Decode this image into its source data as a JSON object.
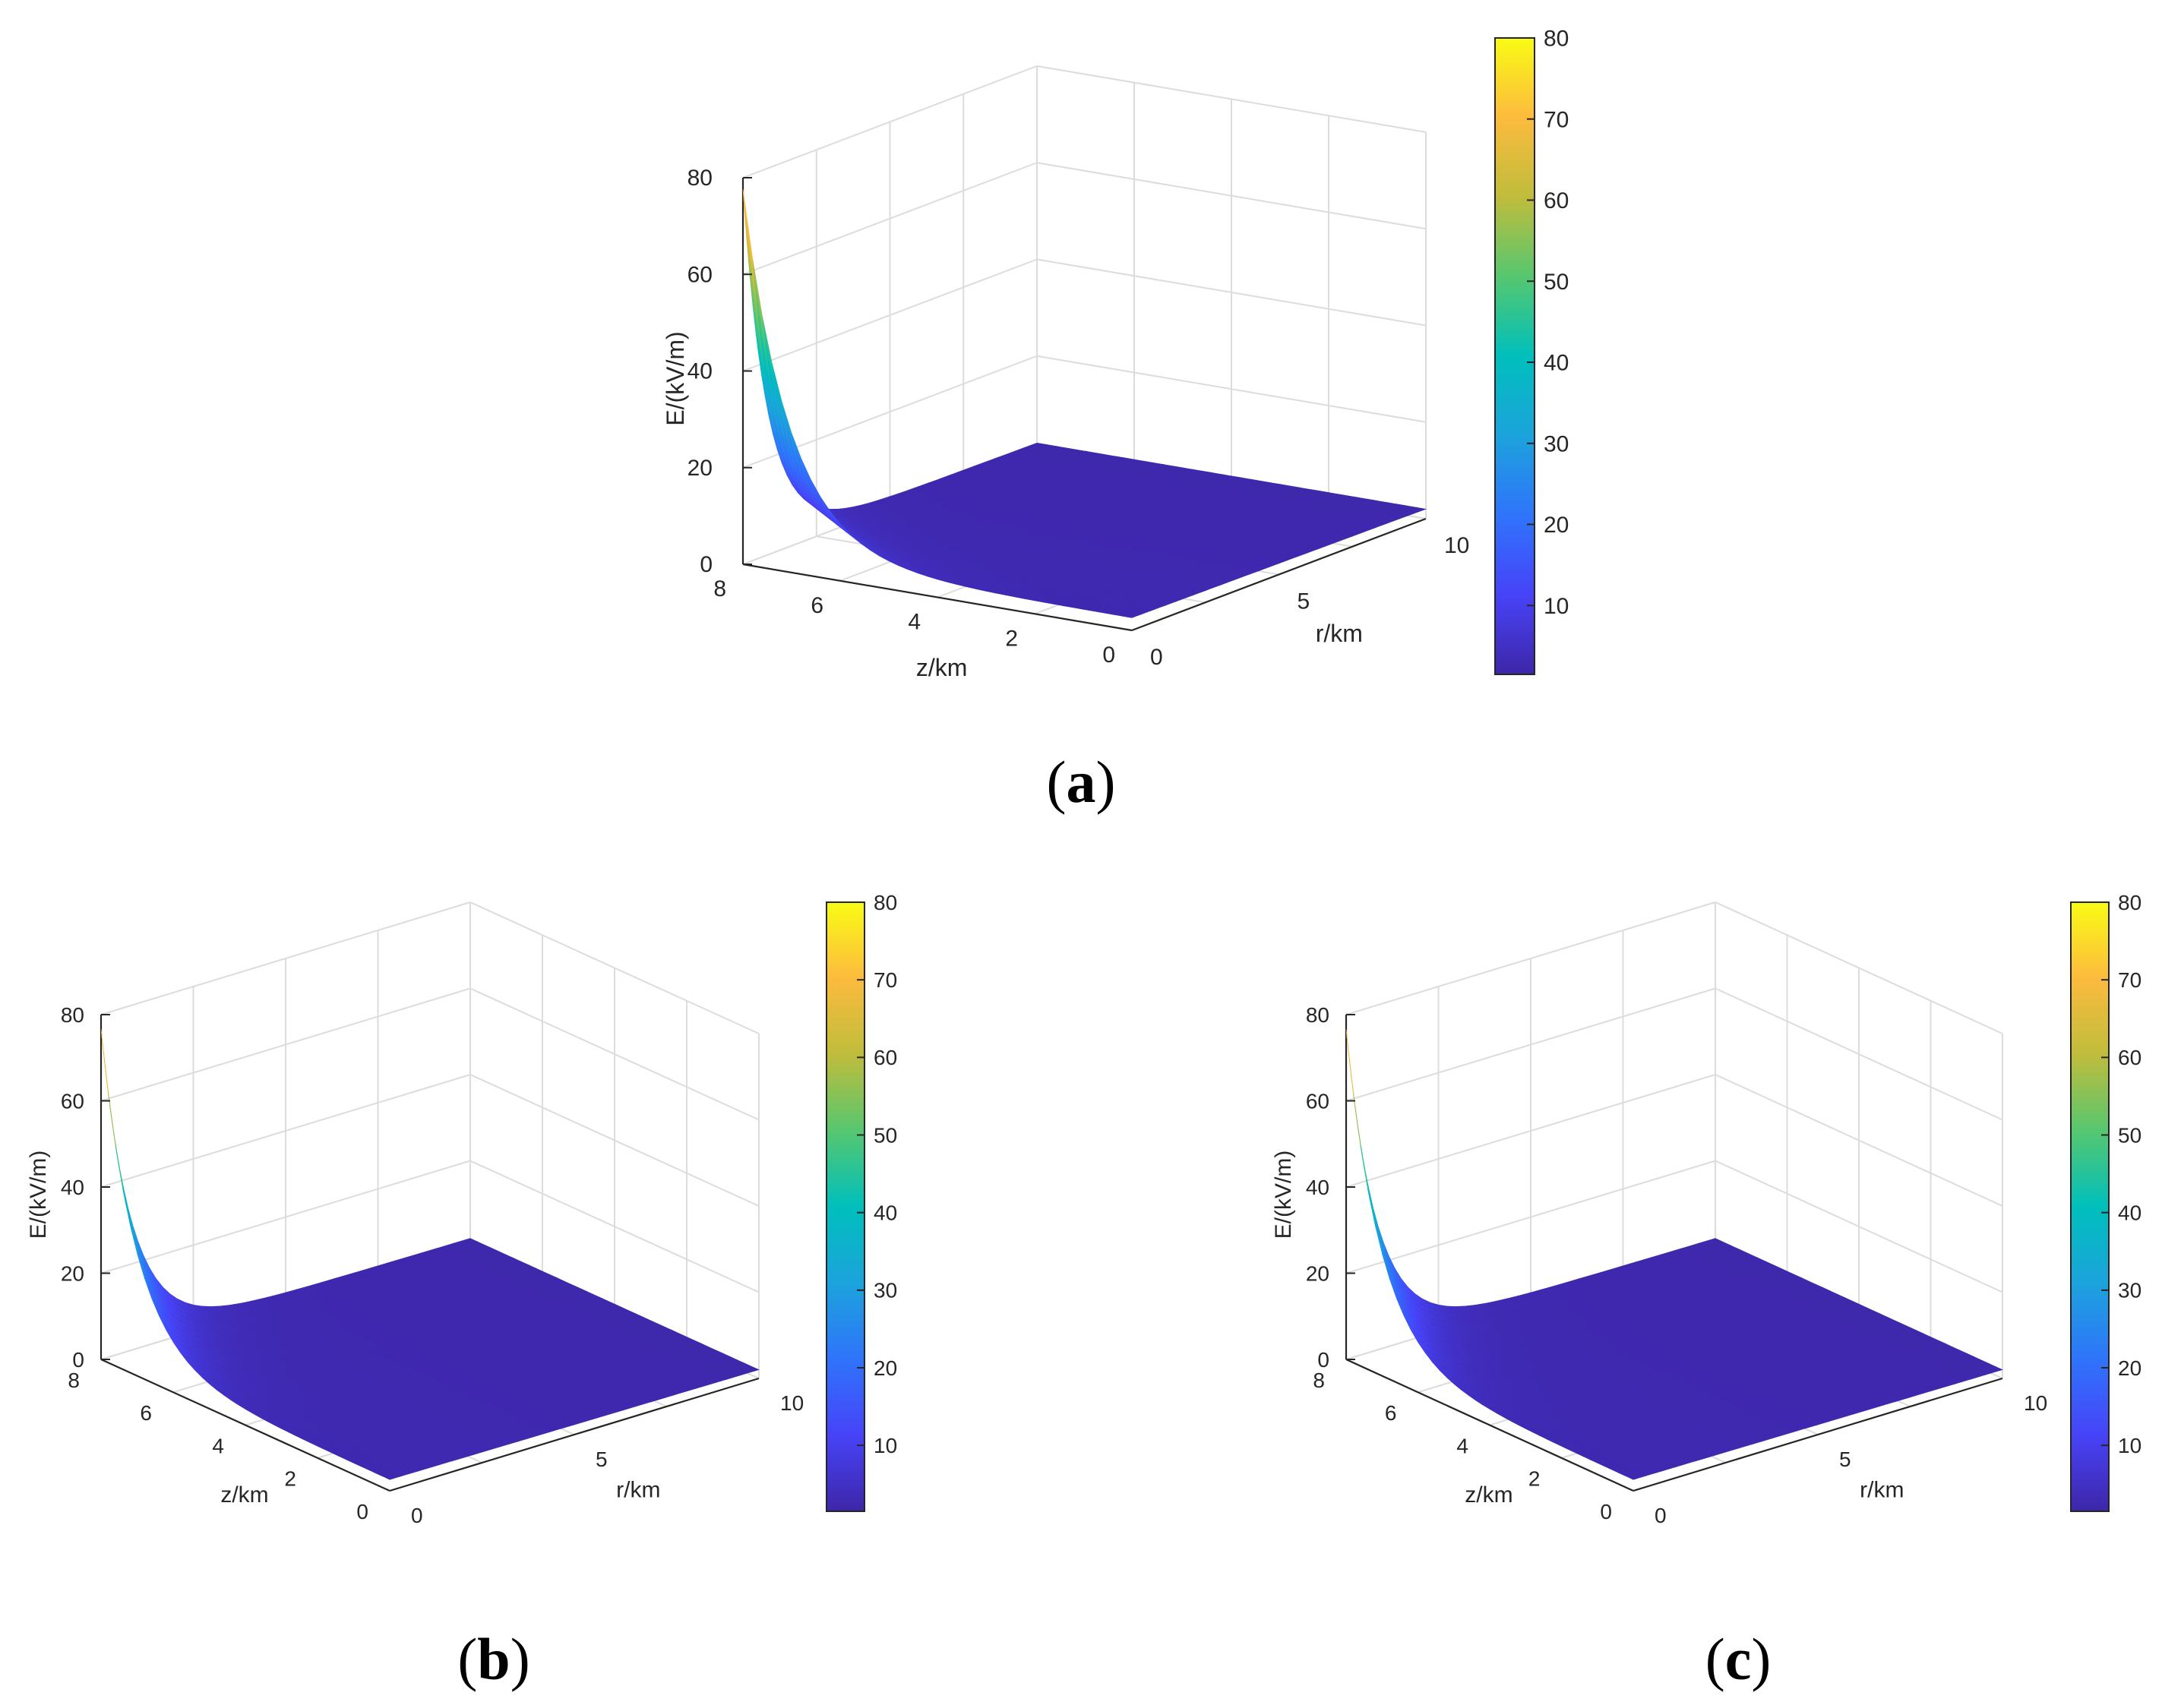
{
  "figure": {
    "panels": [
      {
        "id": "a",
        "label": "a",
        "open_paren": "(",
        "close_paren": ")"
      },
      {
        "id": "b",
        "label": "b",
        "open_paren": "(",
        "close_paren": ")"
      },
      {
        "id": "c",
        "label": "c",
        "open_paren": "(",
        "close_paren": ")"
      }
    ],
    "colormap": [
      "#3e26a8",
      "#4743f8",
      "#2f74fb",
      "#1ca3dc",
      "#00bfbc",
      "#56c76f",
      "#c0bc3c",
      "#fcbb3d",
      "#f9fb15"
    ]
  },
  "chart_data": [
    {
      "type": "surface",
      "panel": "a",
      "zlabel": "E/(kV/m)",
      "xlabel": "z/km",
      "ylabel": "r/km",
      "z_axis_ticks": [
        "0",
        "20",
        "40",
        "60",
        "80"
      ],
      "x_axis_ticks": [
        "0",
        "2",
        "4",
        "6",
        "8"
      ],
      "y_axis_ticks": [
        "0",
        "5",
        "10"
      ],
      "zlim": [
        0,
        80
      ],
      "xlim": [
        0,
        8
      ],
      "ylim": [
        0,
        10
      ],
      "colorbar": {
        "ticks": [
          "10",
          "20",
          "30",
          "40",
          "50",
          "60",
          "70",
          "80"
        ],
        "range": [
          1.5,
          80
        ]
      },
      "surface": {
        "description_values": {
          "peak_E_kVm": 77,
          "peak_at_z_km": 8,
          "peak_at_r_km": 0,
          "floor_E_kVm": 2
        }
      },
      "view": "oblique"
    },
    {
      "type": "surface",
      "panel": "b",
      "zlabel": "E/(kV/m)",
      "xlabel": "z/km",
      "ylabel": "r/km",
      "z_axis_ticks": [
        "0",
        "20",
        "40",
        "60",
        "80"
      ],
      "x_axis_ticks": [
        "0",
        "2",
        "4",
        "6",
        "8"
      ],
      "y_axis_ticks": [
        "0",
        "5",
        "10"
      ],
      "zlim": [
        0,
        80
      ],
      "xlim": [
        0,
        8
      ],
      "ylim": [
        0,
        10
      ],
      "colorbar": {
        "ticks": [
          "10",
          "20",
          "30",
          "40",
          "50",
          "60",
          "70",
          "80"
        ],
        "range": [
          1.5,
          80
        ]
      },
      "surface": {
        "description_values": {
          "peak_E_kVm": 76,
          "peak_at_z_km": 8,
          "peak_at_r_km": 0,
          "floor_E_kVm": 2
        }
      },
      "view": "diagonal"
    },
    {
      "type": "surface",
      "panel": "c",
      "zlabel": "E/(kV/m)",
      "xlabel": "z/km",
      "ylabel": "r/km",
      "z_axis_ticks": [
        "0",
        "20",
        "40",
        "60",
        "80"
      ],
      "x_axis_ticks": [
        "0",
        "2",
        "4",
        "6",
        "8"
      ],
      "y_axis_ticks": [
        "0",
        "5",
        "10"
      ],
      "zlim": [
        0,
        80
      ],
      "xlim": [
        0,
        8
      ],
      "ylim": [
        0,
        10
      ],
      "colorbar": {
        "ticks": [
          "10",
          "20",
          "30",
          "40",
          "50",
          "60",
          "70",
          "80"
        ],
        "range": [
          1.5,
          80
        ]
      },
      "surface": {
        "description_values": {
          "peak_E_kVm": 76,
          "peak_at_z_km": 8,
          "peak_at_r_km": 0,
          "floor_E_kVm": 2
        }
      },
      "view": "diagonal"
    }
  ]
}
